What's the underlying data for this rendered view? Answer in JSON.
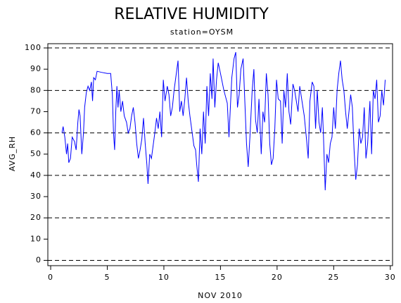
{
  "chart_data": {
    "type": "line",
    "title": "RELATIVE HUMIDITY",
    "subtitle": "station=OYSM",
    "xlabel": "NOV 2010",
    "ylabel": "AVG_RH",
    "color": "#0000ff",
    "xlim": [
      -0.25,
      30.2
    ],
    "ylim": [
      -2.5,
      102
    ],
    "xticks": [
      0,
      5,
      10,
      15,
      20,
      25,
      30
    ],
    "yticks": [
      0,
      10,
      20,
      30,
      40,
      50,
      60,
      70,
      80,
      90,
      100
    ],
    "gridlines": [
      0,
      20,
      40,
      60,
      80,
      100
    ],
    "x": [
      1.0,
      1.1,
      1.25,
      1.4,
      1.5,
      1.6,
      1.75,
      1.9,
      2.1,
      2.25,
      2.4,
      2.5,
      2.6,
      2.75,
      2.9,
      3.0,
      3.15,
      3.3,
      3.45,
      3.6,
      3.7,
      3.8,
      3.95,
      4.1,
      4.5,
      5.0,
      5.3,
      5.45,
      5.55,
      5.65,
      5.75,
      5.85,
      5.95,
      6.05,
      6.2,
      6.35,
      6.5,
      6.7,
      6.85,
      7.0,
      7.15,
      7.3,
      7.45,
      7.6,
      7.75,
      7.9,
      8.05,
      8.2,
      8.35,
      8.5,
      8.6,
      8.75,
      8.9,
      9.05,
      9.2,
      9.35,
      9.5,
      9.65,
      9.8,
      9.95,
      10.1,
      10.3,
      10.45,
      10.6,
      10.75,
      10.9,
      11.1,
      11.25,
      11.4,
      11.55,
      11.7,
      11.85,
      12.0,
      12.15,
      12.3,
      12.5,
      12.65,
      12.8,
      12.9,
      13.05,
      13.2,
      13.35,
      13.5,
      13.65,
      13.8,
      13.95,
      14.1,
      14.25,
      14.35,
      14.5,
      14.65,
      14.8,
      15.0,
      15.3,
      15.6,
      15.75,
      15.9,
      16.0,
      16.2,
      16.35,
      16.5,
      16.65,
      16.8,
      17.0,
      17.15,
      17.3,
      17.45,
      17.6,
      17.8,
      17.95,
      18.1,
      18.25,
      18.4,
      18.6,
      18.75,
      18.9,
      19.05,
      19.2,
      19.35,
      19.5,
      19.65,
      19.8,
      19.95,
      20.1,
      20.3,
      20.45,
      20.6,
      20.75,
      20.9,
      21.05,
      21.2,
      21.4,
      21.55,
      21.7,
      21.85,
      22.0,
      22.2,
      22.4,
      22.6,
      22.75,
      22.9,
      23.1,
      23.25,
      23.4,
      23.55,
      23.7,
      23.85,
      24.0,
      24.1,
      24.25,
      24.4,
      24.55,
      24.7,
      24.85,
      25.0,
      25.15,
      25.3,
      25.45,
      25.6,
      25.75,
      25.9,
      26.05,
      26.2,
      26.35,
      26.5,
      26.65,
      26.8,
      26.95,
      27.1,
      27.25,
      27.4,
      27.55,
      27.7,
      27.85,
      28.0,
      28.2,
      28.35,
      28.5,
      28.65,
      28.8,
      28.95,
      29.1,
      29.25,
      29.4,
      29.55
    ],
    "values": [
      60,
      63,
      58,
      50,
      55,
      46,
      48,
      58,
      56,
      52,
      65,
      71,
      68,
      50,
      60,
      72,
      79,
      82,
      80,
      84,
      75,
      86,
      85,
      89,
      88.5,
      88,
      88,
      78,
      60,
      52,
      70,
      82,
      72,
      80,
      70,
      75,
      68,
      65,
      60,
      62,
      68,
      72,
      65,
      55,
      48,
      52,
      57,
      67,
      55,
      45,
      36,
      50,
      48,
      54,
      60,
      67,
      62,
      70,
      58,
      85,
      75,
      82,
      78,
      68,
      72,
      80,
      88,
      94,
      70,
      75,
      68,
      76,
      86,
      75,
      68,
      60,
      54,
      52,
      45,
      37,
      62,
      50,
      70,
      55,
      82,
      68,
      88,
      76,
      95,
      72,
      85,
      93,
      88,
      80,
      74,
      58,
      75,
      86,
      95,
      98,
      72,
      78,
      90,
      95,
      75,
      55,
      44,
      58,
      80,
      90,
      66,
      60,
      76,
      50,
      70,
      65,
      88,
      78,
      55,
      45,
      48,
      62,
      85,
      76,
      75,
      55,
      80,
      72,
      88,
      70,
      64,
      83,
      80,
      75,
      70,
      82,
      75,
      68,
      57,
      48,
      75,
      84,
      82,
      62,
      80,
      65,
      60,
      72,
      58,
      33,
      50,
      46,
      55,
      58,
      72,
      62,
      80,
      88,
      94,
      85,
      80,
      70,
      62,
      70,
      78,
      72,
      52,
      38,
      45,
      62,
      55,
      58,
      72,
      48,
      55,
      75,
      50,
      80,
      76,
      85,
      65,
      68,
      80,
      73,
      85
    ]
  }
}
